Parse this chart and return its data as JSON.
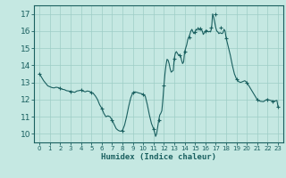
{
  "title": "",
  "xlabel": "Humidex (Indice chaleur)",
  "ylabel": "",
  "xlim": [
    -0.5,
    23.5
  ],
  "ylim": [
    9.5,
    17.5
  ],
  "yticks": [
    10,
    11,
    12,
    13,
    14,
    15,
    16,
    17
  ],
  "xticks": [
    0,
    1,
    2,
    3,
    4,
    5,
    6,
    7,
    8,
    9,
    10,
    11,
    12,
    13,
    14,
    15,
    16,
    17,
    18,
    19,
    20,
    21,
    22,
    23
  ],
  "bg_color": "#c5e8e2",
  "grid_color": "#9dcdc6",
  "line_color": "#1a6060",
  "x": [
    0.0,
    0.2,
    0.4,
    0.6,
    0.8,
    1.0,
    1.2,
    1.4,
    1.6,
    1.8,
    2.0,
    2.2,
    2.4,
    2.6,
    2.8,
    3.0,
    3.2,
    3.4,
    3.6,
    3.8,
    4.0,
    4.2,
    4.4,
    4.6,
    4.8,
    5.0,
    5.2,
    5.4,
    5.6,
    5.8,
    6.0,
    6.2,
    6.4,
    6.6,
    6.8,
    7.0,
    7.2,
    7.4,
    7.6,
    7.8,
    8.0,
    8.2,
    8.4,
    8.6,
    8.8,
    9.0,
    9.2,
    9.4,
    9.6,
    9.8,
    10.0,
    10.2,
    10.4,
    10.6,
    10.8,
    11.0,
    11.1,
    11.2,
    11.3,
    11.4,
    11.5,
    11.6,
    11.7,
    11.8,
    11.9,
    12.0,
    12.1,
    12.2,
    12.3,
    12.4,
    12.5,
    12.6,
    12.7,
    12.8,
    12.9,
    13.0,
    13.1,
    13.2,
    13.3,
    13.4,
    13.5,
    13.6,
    13.7,
    13.8,
    13.9,
    14.0,
    14.1,
    14.2,
    14.3,
    14.4,
    14.5,
    14.6,
    14.7,
    14.8,
    14.9,
    15.0,
    15.1,
    15.2,
    15.3,
    15.4,
    15.5,
    15.6,
    15.7,
    15.8,
    15.9,
    16.0,
    16.1,
    16.2,
    16.3,
    16.4,
    16.5,
    16.6,
    16.7,
    16.8,
    16.9,
    17.0,
    17.1,
    17.2,
    17.3,
    17.4,
    17.5,
    17.6,
    17.7,
    17.8,
    17.9,
    18.0,
    18.2,
    18.4,
    18.6,
    18.8,
    19.0,
    19.2,
    19.4,
    19.6,
    19.8,
    20.0,
    20.3,
    20.6,
    20.9,
    21.0,
    21.3,
    21.6,
    21.9,
    22.0,
    22.3,
    22.6,
    22.9,
    23.0
  ],
  "y": [
    13.5,
    13.3,
    13.1,
    12.95,
    12.8,
    12.75,
    12.7,
    12.68,
    12.72,
    12.7,
    12.65,
    12.6,
    12.58,
    12.52,
    12.5,
    12.48,
    12.45,
    12.42,
    12.5,
    12.52,
    12.55,
    12.5,
    12.45,
    12.5,
    12.48,
    12.42,
    12.35,
    12.2,
    12.0,
    11.7,
    11.5,
    11.2,
    11.0,
    11.05,
    11.0,
    10.8,
    10.55,
    10.3,
    10.2,
    10.15,
    10.2,
    10.5,
    11.0,
    11.6,
    12.1,
    12.4,
    12.45,
    12.42,
    12.38,
    12.35,
    12.3,
    12.2,
    11.7,
    11.1,
    10.6,
    10.3,
    10.1,
    9.85,
    10.0,
    10.4,
    10.8,
    11.1,
    11.2,
    11.35,
    12.0,
    12.8,
    13.5,
    14.0,
    14.35,
    14.3,
    14.1,
    13.8,
    13.6,
    13.65,
    13.7,
    14.4,
    14.7,
    14.8,
    14.7,
    14.6,
    14.6,
    14.55,
    14.3,
    14.1,
    14.2,
    14.8,
    15.0,
    15.2,
    15.5,
    15.65,
    15.8,
    16.0,
    16.1,
    15.95,
    15.85,
    15.95,
    16.1,
    16.05,
    16.2,
    16.05,
    16.15,
    16.1,
    16.0,
    15.8,
    15.9,
    16.0,
    16.05,
    16.0,
    15.95,
    15.98,
    15.95,
    16.2,
    17.0,
    16.8,
    16.5,
    16.2,
    16.0,
    15.95,
    15.85,
    15.9,
    15.88,
    15.85,
    15.9,
    16.1,
    16.0,
    15.6,
    15.1,
    14.6,
    14.0,
    13.5,
    13.2,
    13.05,
    13.0,
    13.05,
    13.1,
    13.0,
    12.7,
    12.4,
    12.1,
    12.0,
    11.9,
    11.88,
    12.0,
    12.0,
    11.95,
    11.9,
    11.95,
    11.6
  ],
  "marker_x": [
    0,
    2,
    3,
    4,
    5,
    6,
    7,
    8,
    9,
    10,
    11,
    11.5,
    12,
    13,
    13.5,
    14,
    14.5,
    15,
    15.5,
    16,
    16.5,
    17,
    17.5,
    18,
    19,
    20,
    21,
    22,
    22.5,
    23
  ],
  "marker_y": [
    13.5,
    12.65,
    12.48,
    12.55,
    12.42,
    11.5,
    10.8,
    10.2,
    12.4,
    12.3,
    10.3,
    10.8,
    12.8,
    14.4,
    14.6,
    14.8,
    15.65,
    15.95,
    16.15,
    16.0,
    16.2,
    17.0,
    16.2,
    15.6,
    13.2,
    13.0,
    12.0,
    12.0,
    11.88,
    11.6
  ]
}
